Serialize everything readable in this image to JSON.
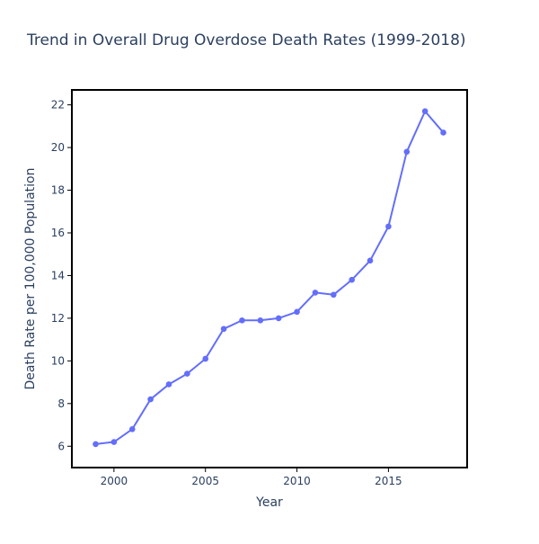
{
  "chart_data": {
    "type": "line",
    "title": "Trend in Overall Drug Overdose Death Rates (1999-2018)",
    "xlabel": "Year",
    "ylabel": "Death Rate per 100,000 Population",
    "xlim": [
      1997.7,
      2019.3
    ],
    "ylim": [
      5.0,
      22.7
    ],
    "x_ticks": [
      2000,
      2005,
      2010,
      2015
    ],
    "y_ticks": [
      6,
      8,
      10,
      12,
      14,
      16,
      18,
      20,
      22
    ],
    "grid": false,
    "legend": "none",
    "series": [
      {
        "color": "#636efa",
        "x": [
          1999,
          2000,
          2001,
          2002,
          2003,
          2004,
          2005,
          2006,
          2007,
          2008,
          2009,
          2010,
          2011,
          2012,
          2013,
          2014,
          2015,
          2016,
          2017,
          2018
        ],
        "values": [
          6.1,
          6.2,
          6.8,
          8.2,
          8.9,
          9.4,
          10.1,
          11.5,
          11.9,
          11.9,
          12.0,
          12.3,
          13.2,
          13.1,
          13.8,
          14.7,
          16.3,
          19.8,
          21.7,
          20.7
        ]
      }
    ]
  }
}
